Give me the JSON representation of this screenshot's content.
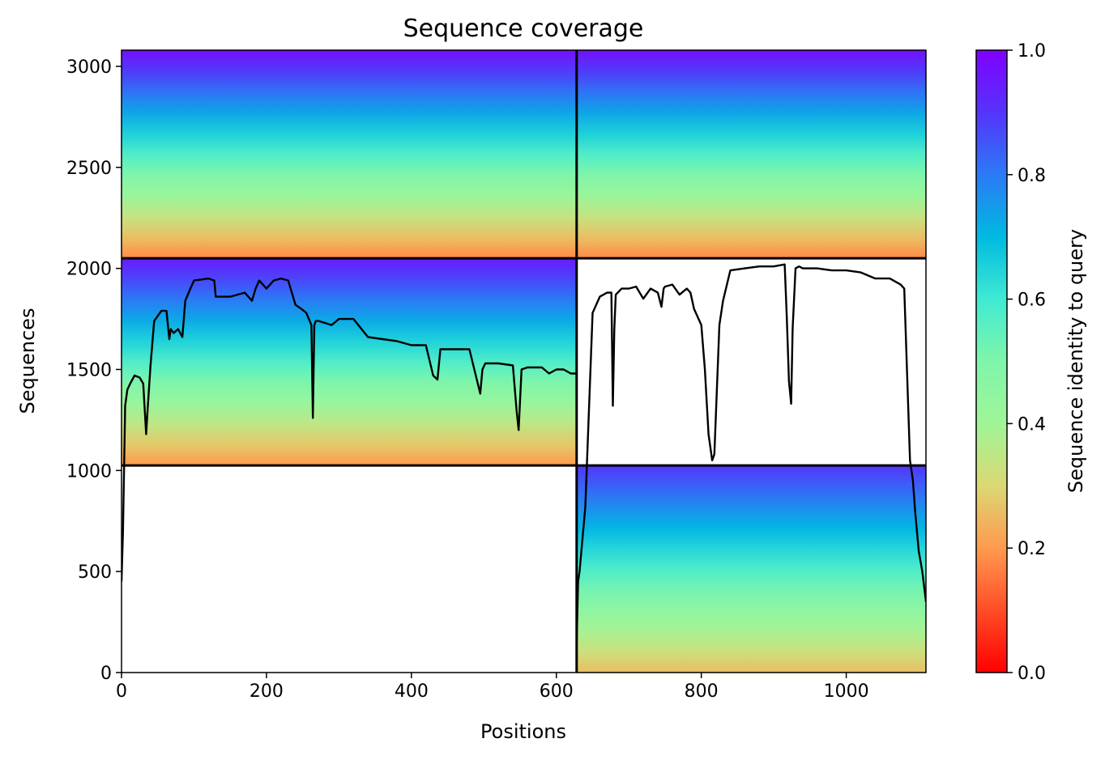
{
  "chart_data": {
    "type": "heatmap",
    "title": "Sequence coverage",
    "xlabel": "Positions",
    "ylabel": "Sequences",
    "xlim": [
      0,
      1110
    ],
    "ylim": [
      0,
      3080
    ],
    "x_ticks": [
      0,
      200,
      400,
      600,
      800,
      1000
    ],
    "y_ticks": [
      0,
      500,
      1000,
      1500,
      2000,
      2500,
      3000
    ],
    "grid": false,
    "colormap": "rainbow_r",
    "colorbar": {
      "label": "Sequence identity to query",
      "range": [
        0.0,
        1.0
      ],
      "ticks": [
        "0.0",
        "0.2",
        "0.4",
        "0.6",
        "0.8",
        "1.0"
      ]
    },
    "block_boundaries": {
      "x": [
        628
      ],
      "y": [
        1025,
        2050
      ]
    },
    "blocks": [
      {
        "x_range": [
          0,
          628
        ],
        "y_range": [
          2050,
          3080
        ],
        "identity_top": 0.97,
        "identity_bottom": 0.18
      },
      {
        "x_range": [
          628,
          1110
        ],
        "y_range": [
          2050,
          3080
        ],
        "identity_top": 0.97,
        "identity_bottom": 0.18
      },
      {
        "x_range": [
          0,
          628
        ],
        "y_range": [
          1025,
          2050
        ],
        "identity_top": 0.95,
        "identity_bottom": 0.2
      },
      {
        "x_range": [
          628,
          1110
        ],
        "y_range": [
          0,
          1025
        ],
        "identity_top": 0.9,
        "identity_bottom": 0.26
      }
    ],
    "series": [
      {
        "x": [
          0,
          2,
          5,
          8,
          12,
          18,
          25,
          30,
          34,
          36,
          40,
          45,
          55,
          62,
          66,
          68,
          72,
          78,
          84,
          88,
          95,
          100,
          110,
          120,
          128,
          130,
          140,
          150,
          160,
          170,
          180,
          185,
          190,
          200,
          210,
          220,
          230,
          240,
          248,
          255,
          262,
          264,
          266,
          268,
          272,
          290,
          300,
          320,
          340,
          360,
          380,
          400,
          420,
          430,
          436,
          440,
          445,
          460,
          480,
          495,
          498,
          502,
          520,
          540,
          545,
          548,
          552,
          560,
          580,
          590,
          600,
          610,
          620,
          627
        ],
        "values": [
          450,
          700,
          1320,
          1400,
          1430,
          1470,
          1460,
          1430,
          1180,
          1300,
          1520,
          1740,
          1790,
          1790,
          1650,
          1700,
          1680,
          1700,
          1660,
          1840,
          1900,
          1940,
          1945,
          1950,
          1940,
          1860,
          1860,
          1860,
          1870,
          1880,
          1840,
          1900,
          1940,
          1900,
          1940,
          1950,
          1940,
          1820,
          1800,
          1780,
          1720,
          1260,
          1720,
          1740,
          1740,
          1720,
          1750,
          1750,
          1660,
          1650,
          1640,
          1620,
          1620,
          1470,
          1450,
          1600,
          1600,
          1600,
          1600,
          1380,
          1500,
          1530,
          1530,
          1520,
          1300,
          1200,
          1500,
          1510,
          1510,
          1480,
          1500,
          1500,
          1480,
          1480
        ]
      },
      {
        "x": [
          628,
          630,
          632,
          640,
          645,
          650,
          660,
          670,
          676,
          678,
          680,
          682,
          690,
          700,
          710,
          720,
          730,
          740,
          745,
          748,
          750,
          760,
          770,
          780,
          785,
          790,
          800,
          805,
          810,
          815,
          818,
          825,
          830,
          840,
          860,
          880,
          900,
          915,
          918,
          921,
          924,
          926,
          930,
          935,
          940,
          960,
          980,
          1000,
          1020,
          1040,
          1060,
          1075,
          1080,
          1088,
          1092,
          1095,
          1100,
          1105,
          1110
        ],
        "values": [
          150,
          450,
          500,
          820,
          1300,
          1780,
          1860,
          1880,
          1880,
          1320,
          1700,
          1870,
          1900,
          1900,
          1910,
          1850,
          1900,
          1880,
          1810,
          1900,
          1910,
          1920,
          1870,
          1900,
          1880,
          1800,
          1720,
          1500,
          1180,
          1050,
          1080,
          1720,
          1840,
          1990,
          2000,
          2010,
          2010,
          2020,
          1760,
          1440,
          1330,
          1700,
          2000,
          2010,
          2000,
          2000,
          1990,
          1990,
          1980,
          1950,
          1950,
          1920,
          1900,
          1050,
          950,
          800,
          600,
          500,
          350
        ]
      }
    ]
  }
}
